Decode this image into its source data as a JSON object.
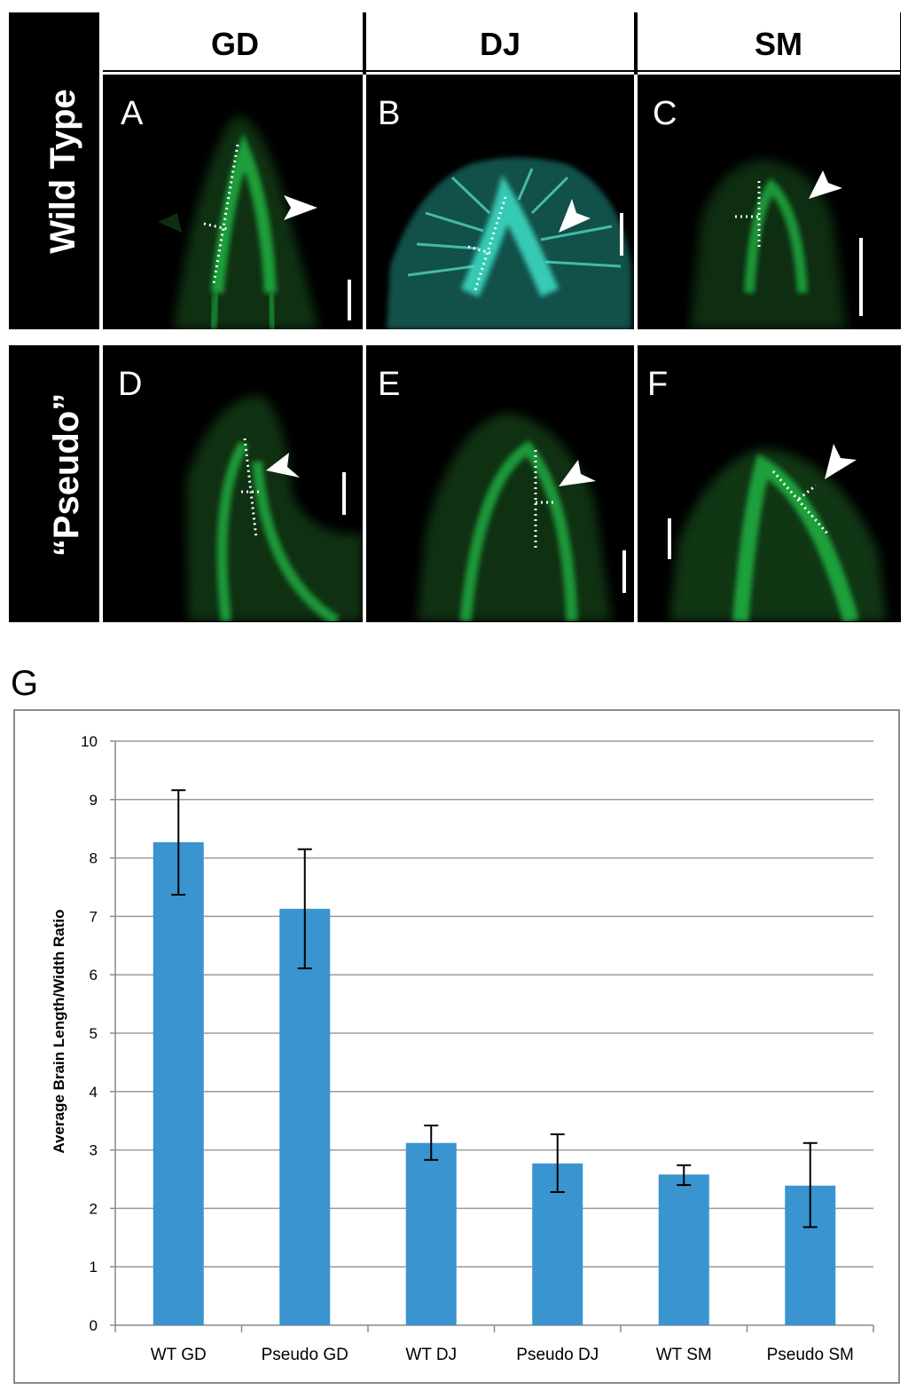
{
  "columns": [
    "GD",
    "DJ",
    "SM"
  ],
  "rows": [
    "Wild Type",
    "“Pseudo”"
  ],
  "panels": [
    {
      "letter": "A",
      "name": "panel-a-wildtype-gd"
    },
    {
      "letter": "B",
      "name": "panel-b-wildtype-dj"
    },
    {
      "letter": "C",
      "name": "panel-c-wildtype-sm"
    },
    {
      "letter": "D",
      "name": "panel-d-pseudo-gd"
    },
    {
      "letter": "E",
      "name": "panel-e-pseudo-dj"
    },
    {
      "letter": "F",
      "name": "panel-f-pseudo-sm"
    }
  ],
  "chart_label": "G",
  "colors": {
    "bar": "#3a94cf",
    "fluorescence_green": "#1fd24a",
    "fluorescence_cyan": "#3de0c8",
    "panel_background": "#000000"
  },
  "chart_data": {
    "type": "bar",
    "categories": [
      "WT GD",
      "Pseudo GD",
      "WT DJ",
      "Pseudo DJ",
      "WT SM",
      "Pseudo SM"
    ],
    "values": [
      8.27,
      7.13,
      3.12,
      2.77,
      2.58,
      2.39
    ],
    "error_low": [
      7.37,
      6.11,
      2.83,
      2.28,
      2.4,
      1.68
    ],
    "error_high": [
      9.16,
      8.15,
      3.42,
      3.27,
      2.74,
      3.12
    ],
    "title": "",
    "xlabel": "",
    "ylabel": "Average Brain Length/Width Ratio",
    "ylim": [
      0,
      10
    ],
    "yticks": [
      "0",
      "1",
      "2",
      "3",
      "4",
      "5",
      "6",
      "7",
      "8",
      "9",
      "10"
    ],
    "grid": true,
    "bar_color": "#3a94cf"
  }
}
